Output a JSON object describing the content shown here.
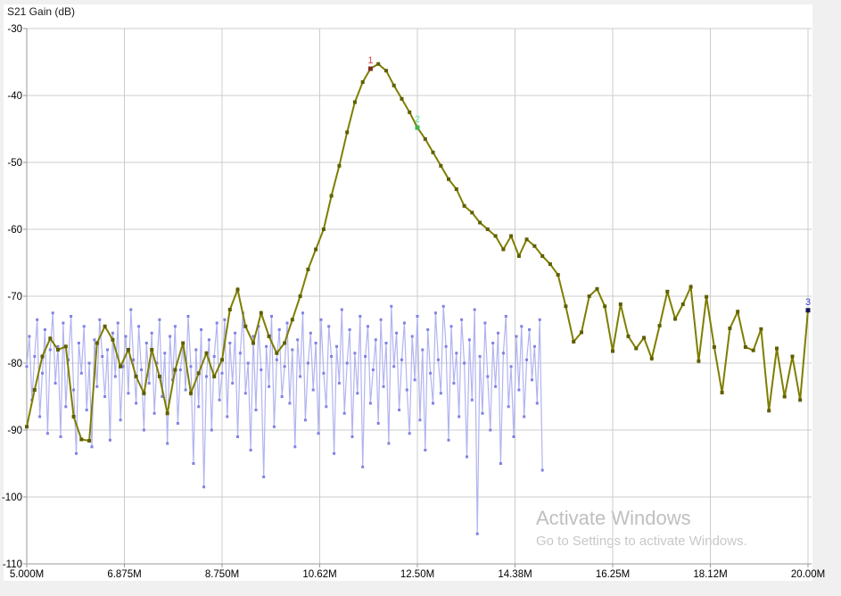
{
  "header": {
    "title": "S21 Gain (dB)"
  },
  "watermark": {
    "line1": "Activate Windows",
    "line2": "Go to Settings to activate Windows."
  },
  "chart_data": {
    "type": "line",
    "title": "S21 Gain (dB)",
    "xlabel": "",
    "ylabel": "",
    "xlim": [
      5.0,
      20.0
    ],
    "ylim": [
      -110,
      -30
    ],
    "grid": true,
    "legend_position": "none",
    "x_tick_values": [
      5.0,
      6.875,
      8.75,
      10.625,
      12.5,
      14.375,
      16.25,
      18.125,
      20.0
    ],
    "x_tick_labels": [
      "5.000M",
      "6.875M",
      "8.750M",
      "10.62M",
      "12.50M",
      "14.38M",
      "16.25M",
      "18.12M",
      "20.00M"
    ],
    "y_tick_values": [
      -30,
      -40,
      -50,
      -60,
      -70,
      -80,
      -90,
      -100,
      -110
    ],
    "y_tick_labels": [
      "-30",
      "-40",
      "-50",
      "-60",
      "-70",
      "-80",
      "-90",
      "-100",
      "-110"
    ],
    "series": [
      {
        "id": "trace-1",
        "color": "#7e7e00",
        "marker_color": "#5f5f00",
        "line_width": 2,
        "marker_size": 4,
        "x_start": 5.0,
        "x_step": 0.15,
        "y": [
          -89.5,
          -84.0,
          -79.0,
          -76.3,
          -78.0,
          -77.5,
          -88.0,
          -91.4,
          -91.6,
          -77.0,
          -74.5,
          -76.5,
          -80.5,
          -78.0,
          -82.0,
          -84.5,
          -78.0,
          -82.0,
          -87.5,
          -81.0,
          -77.0,
          -84.5,
          -81.5,
          -78.5,
          -82.0,
          -79.5,
          -72.0,
          -69.0,
          -74.5,
          -77.0,
          -72.5,
          -76.0,
          -78.5,
          -77.0,
          -73.5,
          -70.0,
          -66.0,
          -63.0,
          -60.0,
          -55.0,
          -50.5,
          -45.5,
          -41.0,
          -38.0,
          -36.0,
          -35.3,
          -36.3,
          -38.5,
          -40.5,
          -42.5,
          -44.8,
          -46.5,
          -48.5,
          -50.5,
          -52.5,
          -54.0,
          -56.5,
          -57.5,
          -59.0,
          -60.0,
          -61.0,
          -63.0,
          -61.0,
          -64.0,
          -61.5,
          -62.5,
          -64.0,
          -65.2,
          -66.8,
          -71.5,
          -76.8,
          -75.4,
          -70.0,
          -68.9,
          -71.5,
          -78.2,
          -71.2,
          -76.0,
          -77.8,
          -76.2,
          -79.3,
          -74.4,
          -69.3,
          -73.4,
          -71.2,
          -68.6,
          -79.7,
          -70.1,
          -77.6,
          -84.4,
          -74.8,
          -72.3,
          -77.6,
          -78.1,
          -74.9,
          -87.1,
          -77.8,
          -85.0,
          -79.0,
          -85.5,
          -72.1
        ]
      },
      {
        "id": "trace-2",
        "color": "#b2b4f0",
        "marker_color": "#7e81e3",
        "line_width": 1.2,
        "marker_size": 3,
        "x_start": 5.0,
        "x_step": 0.05,
        "y": [
          -80.5,
          -76.0,
          -85.5,
          -79.0,
          -73.5,
          -88.0,
          -81.5,
          -75.0,
          -90.5,
          -78.0,
          -72.5,
          -83.0,
          -77.5,
          -91.0,
          -74.0,
          -86.5,
          -79.5,
          -73.0,
          -84.0,
          -93.5,
          -77.0,
          -81.5,
          -74.5,
          -87.0,
          -80.0,
          -92.5,
          -76.5,
          -83.5,
          -73.5,
          -79.0,
          -85.0,
          -78.0,
          -91.5,
          -75.5,
          -82.0,
          -74.0,
          -88.5,
          -80.5,
          -76.0,
          -84.5,
          -72.0,
          -79.5,
          -86.0,
          -74.5,
          -81.0,
          -90.0,
          -77.0,
          -83.0,
          -75.5,
          -87.5,
          -80.0,
          -73.5,
          -85.0,
          -78.5,
          -92.0,
          -76.0,
          -82.5,
          -74.5,
          -89.0,
          -81.0,
          -77.5,
          -84.0,
          -73.0,
          -80.5,
          -95.0,
          -78.0,
          -86.5,
          -75.0,
          -98.5,
          -82.0,
          -76.5,
          -90.0,
          -79.0,
          -74.0,
          -85.5,
          -81.5,
          -73.5,
          -88.0,
          -77.0,
          -83.0,
          -75.5,
          -91.0,
          -78.5,
          -72.5,
          -84.5,
          -80.0,
          -93.0,
          -76.0,
          -87.0,
          -74.5,
          -81.0,
          -97.0,
          -77.5,
          -83.5,
          -73.0,
          -89.5,
          -79.5,
          -75.0,
          -85.0,
          -80.5,
          -74.0,
          -86.0,
          -78.0,
          -92.5,
          -76.5,
          -82.0,
          -72.5,
          -88.5,
          -80.0,
          -75.5,
          -84.0,
          -77.0,
          -90.5,
          -73.5,
          -81.5,
          -86.5,
          -74.5,
          -79.0,
          -93.5,
          -77.5,
          -83.0,
          -72.0,
          -87.5,
          -80.0,
          -75.0,
          -91.0,
          -78.5,
          -84.5,
          -73.0,
          -95.5,
          -79.0,
          -74.5,
          -86.0,
          -81.0,
          -76.5,
          -89.0,
          -73.5,
          -83.5,
          -77.0,
          -92.0,
          -71.5,
          -80.5,
          -75.5,
          -87.0,
          -79.5,
          -74.0,
          -84.0,
          -90.5,
          -76.0,
          -82.5,
          -73.0,
          -88.5,
          -78.0,
          -93.0,
          -75.0,
          -81.5,
          -86.0,
          -72.5,
          -79.5,
          -84.5,
          -71.5,
          -77.5,
          -91.5,
          -74.5,
          -83.0,
          -78.5,
          -88.0,
          -73.5,
          -80.0,
          -94.0,
          -76.5,
          -85.5,
          -72.0,
          -105.5,
          -79.0,
          -87.5,
          -74.0,
          -82.0,
          -90.0,
          -77.0,
          -83.5,
          -75.5,
          -95.0,
          -78.5,
          -73.0,
          -86.5,
          -80.5,
          -91.0,
          -76.0,
          -84.0,
          -74.5,
          -88.0,
          -79.5,
          -75.0,
          -82.5,
          -77.5,
          -86.0,
          -73.5,
          -96.0
        ]
      }
    ],
    "markers": [
      {
        "label": "1",
        "x": 11.6,
        "y": -36.0,
        "label_color": "#d04a4a",
        "point_color": "#7e2f20"
      },
      {
        "label": "2",
        "x": 12.5,
        "y": -44.8,
        "label_color": "#66e699",
        "point_color": "#3cb54a"
      },
      {
        "label": "3",
        "x": 20.0,
        "y": -72.1,
        "label_color": "#3a3ad0",
        "point_color": "#16164f"
      }
    ],
    "colors": {
      "outer_bg": "#f0f0f0",
      "plot_bg": "#ffffff",
      "grid": "#cccccc",
      "axis": "#9a9a9a",
      "tick_text": "#000000",
      "watermark_line1": "#bfbfbf",
      "watermark_line2": "#c8c8c8"
    }
  }
}
